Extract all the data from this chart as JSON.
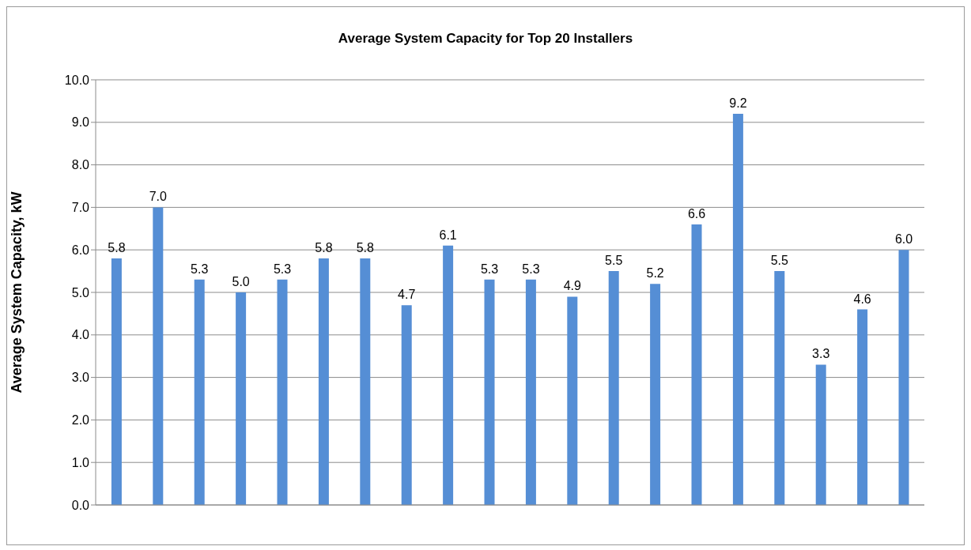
{
  "chart_data": {
    "type": "bar",
    "title": "Average System Capacity for Top 20 Installers",
    "ylabel": "Average System Capacity,  kW",
    "categories": [
      null,
      null,
      null,
      null,
      null,
      null,
      null,
      null,
      null,
      null,
      null,
      null,
      null,
      null,
      null,
      null,
      null,
      null,
      null,
      null
    ],
    "values": [
      5.8,
      7.0,
      5.3,
      5.0,
      5.3,
      5.8,
      5.8,
      4.7,
      6.1,
      5.3,
      5.3,
      4.9,
      5.5,
      5.2,
      6.6,
      9.2,
      5.5,
      3.3,
      4.6,
      6.0
    ],
    "value_labels": [
      "5.8",
      "7.0",
      "5.3",
      "5.0",
      "5.3",
      "5.8",
      "5.8",
      "4.7",
      "6.1",
      "5.3",
      "5.3",
      "4.9",
      "5.5",
      "5.2",
      "6.6",
      "9.2",
      "5.5",
      "3.3",
      "4.6",
      "6.0"
    ],
    "color": "#558ed5",
    "ylim": [
      0,
      10
    ],
    "yticks": [
      {
        "value": 0,
        "label": "0.0"
      },
      {
        "value": 1,
        "label": "1.0"
      },
      {
        "value": 2,
        "label": "2.0"
      },
      {
        "value": 3,
        "label": "3.0"
      },
      {
        "value": 4,
        "label": "4.0"
      },
      {
        "value": 5,
        "label": "5.0"
      },
      {
        "value": 6,
        "label": "6.0"
      },
      {
        "value": 7,
        "label": "7.0"
      },
      {
        "value": 8,
        "label": "8.0"
      },
      {
        "value": 9,
        "label": "9.0"
      },
      {
        "value": 10,
        "label": "10.0"
      }
    ],
    "grid": "y"
  }
}
